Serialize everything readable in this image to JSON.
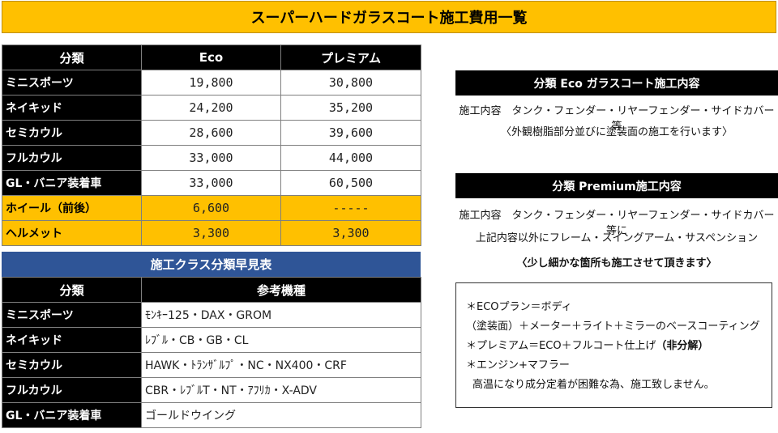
{
  "title": "スーパーハードガラスコート施工費用一覧",
  "price_table": {
    "headers": [
      "分類",
      "Eco",
      "プレミアム"
    ],
    "rows": [
      {
        "name": "ミニスポーツ",
        "eco": "19,800",
        "premium": "30,800"
      },
      {
        "name": "ネイキッド",
        "eco": "24,200",
        "premium": "35,200"
      },
      {
        "name": "セミカウル",
        "eco": "28,600",
        "premium": "39,600"
      },
      {
        "name": "フルカウル",
        "eco": "33,000",
        "premium": "44,000"
      },
      {
        "name": "GL・バニア装着車",
        "eco": "33,000",
        "premium": "60,500"
      }
    ],
    "highlight_rows": [
      {
        "name": "ホイール（前後）",
        "eco": "6,600",
        "premium": "-----"
      },
      {
        "name": "ヘルメット",
        "eco": "3,300",
        "premium": "3,300"
      }
    ],
    "highlight_color": "#ffc000"
  },
  "class_table": {
    "banner": "施工クラス分類早見表",
    "banner_color": "#2f5597",
    "headers": [
      "分類",
      "参考機種"
    ],
    "rows": [
      {
        "name": "ミニスポーツ",
        "models": "ﾓﾝｷｰ125・DAX・GROM"
      },
      {
        "name": "ネイキッド",
        "models": "ﾚﾌﾞﾙ・CB・GB・CL"
      },
      {
        "name": "セミカウル",
        "models": "HAWK・ﾄﾗﾝｻﾞﾙﾌﾟ・NC・NX400・CRF"
      },
      {
        "name": "フルカウル",
        "models": "CBR・ﾚﾌﾞﾙT・NT・ｱﾌﾘｶ・X-ADV"
      },
      {
        "name": "GL・バニア装着車",
        "models": "ゴールドウイング"
      }
    ]
  },
  "eco_panel": {
    "title": "分類 Eco ガラスコート施工内容",
    "line1": "施工内容　タンク・フェンダー・リヤーフェンダー・サイドカバー等",
    "line2": "〈外観樹脂部分並びに塗装面の施工を行います〉"
  },
  "premium_panel": {
    "title": "分類 Premium施工内容",
    "line1": "施工内容　タンク・フェンダー・リヤーフェンダー・サイドカバー等に",
    "line2": "上記内容以外にフレーム・スイングアーム・サスペンション",
    "line3": "〈少し細かな箇所も施工させて頂きます〉"
  },
  "notes": {
    "line1": "＊ECOプラン＝ボディ",
    "line2": "（塗装面）＋メーター＋ライト＋ミラーのベースコーティング",
    "line3_prefix": "＊プレミアム＝ECO＋フルコート仕上げ",
    "line3_bold": "（非分解）",
    "line4": "＊エンジン+マフラー",
    "line5": "高温になり成分定着が困難な為、施工致しません。"
  }
}
